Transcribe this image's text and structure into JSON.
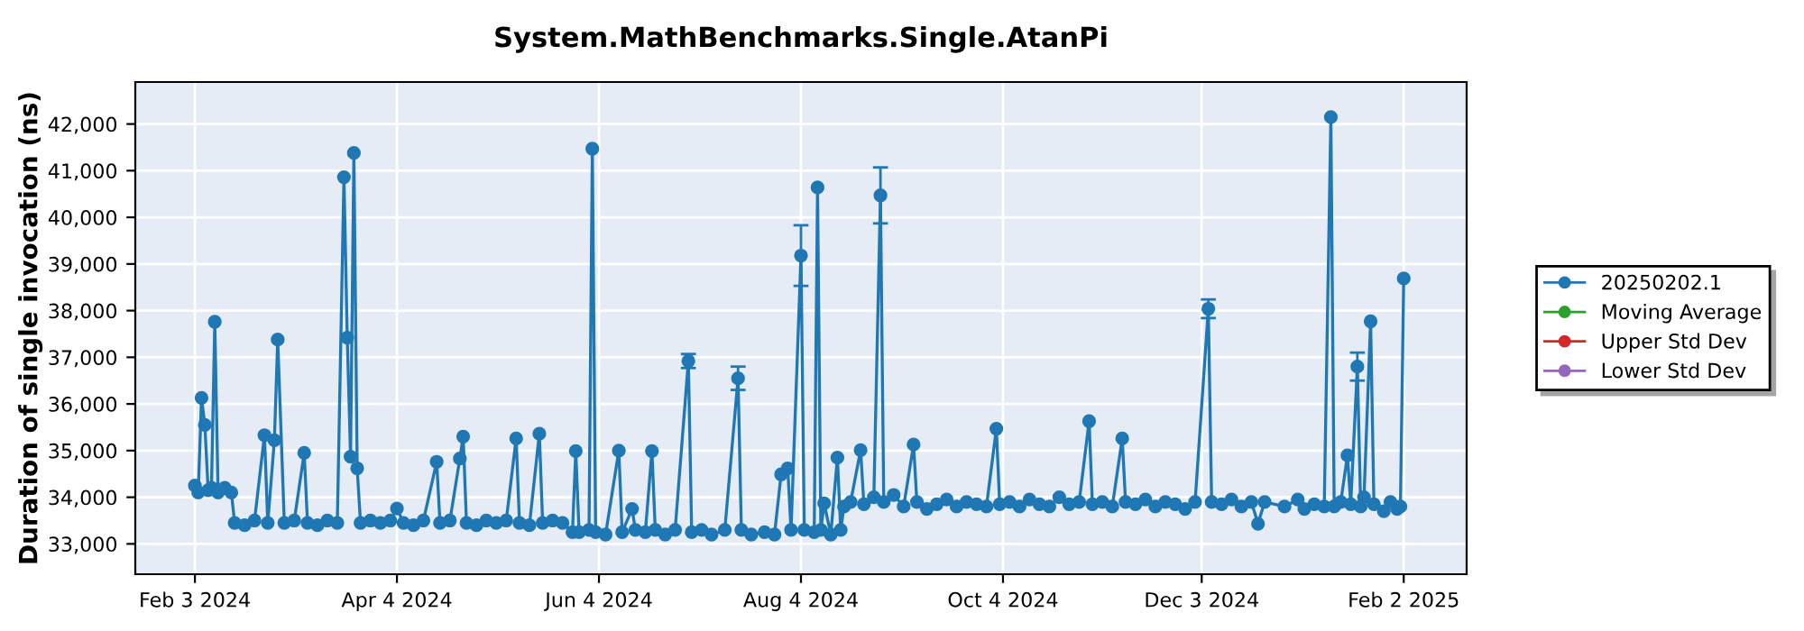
{
  "chart_data": {
    "type": "line",
    "title": "System.MathBenchmarks.Single.AtanPi",
    "ylabel": "Duration of single invocation (ns)",
    "x": [
      "2024-02-03",
      "2024-02-04",
      "2024-02-05",
      "2024-02-06",
      "2024-02-07",
      "2024-02-08",
      "2024-02-09",
      "2024-02-10",
      "2024-02-12",
      "2024-02-14",
      "2024-02-15",
      "2024-02-18",
      "2024-02-21",
      "2024-02-24",
      "2024-02-25",
      "2024-02-27",
      "2024-02-28",
      "2024-03-01",
      "2024-03-04",
      "2024-03-07",
      "2024-03-08",
      "2024-03-11",
      "2024-03-14",
      "2024-03-17",
      "2024-03-19",
      "2024-03-20",
      "2024-03-21",
      "2024-03-22",
      "2024-03-23",
      "2024-03-24",
      "2024-03-27",
      "2024-03-30",
      "2024-04-02",
      "2024-04-04",
      "2024-04-06",
      "2024-04-09",
      "2024-04-12",
      "2024-04-16",
      "2024-04-17",
      "2024-04-20",
      "2024-04-23",
      "2024-04-24",
      "2024-04-25",
      "2024-04-28",
      "2024-05-01",
      "2024-05-04",
      "2024-05-07",
      "2024-05-10",
      "2024-05-11",
      "2024-05-14",
      "2024-05-17",
      "2024-05-18",
      "2024-05-21",
      "2024-05-24",
      "2024-05-27",
      "2024-05-28",
      "2024-05-29",
      "2024-06-01",
      "2024-06-02",
      "2024-06-03",
      "2024-06-06",
      "2024-06-10",
      "2024-06-11",
      "2024-06-14",
      "2024-06-15",
      "2024-06-18",
      "2024-06-20",
      "2024-06-21",
      "2024-06-24",
      "2024-06-27",
      "2024-07-01",
      "2024-07-02",
      "2024-07-05",
      "2024-07-08",
      "2024-07-12",
      "2024-07-16",
      "2024-07-17",
      "2024-07-20",
      "2024-07-24",
      "2024-07-27",
      "2024-07-29",
      "2024-07-31",
      "2024-08-01",
      "2024-08-04",
      "2024-08-05",
      "2024-08-08",
      "2024-08-09",
      "2024-08-10",
      "2024-08-11",
      "2024-08-13",
      "2024-08-15",
      "2024-08-16",
      "2024-08-17",
      "2024-08-19",
      "2024-08-22",
      "2024-08-23",
      "2024-08-26",
      "2024-08-28",
      "2024-08-29",
      "2024-09-01",
      "2024-09-04",
      "2024-09-07",
      "2024-09-08",
      "2024-09-11",
      "2024-09-14",
      "2024-09-17",
      "2024-09-20",
      "2024-09-23",
      "2024-09-26",
      "2024-09-29",
      "2024-10-02",
      "2024-10-03",
      "2024-10-06",
      "2024-10-09",
      "2024-10-12",
      "2024-10-15",
      "2024-10-18",
      "2024-10-21",
      "2024-10-24",
      "2024-10-27",
      "2024-10-30",
      "2024-10-31",
      "2024-11-03",
      "2024-11-06",
      "2024-11-09",
      "2024-11-10",
      "2024-11-13",
      "2024-11-16",
      "2024-11-19",
      "2024-11-22",
      "2024-11-25",
      "2024-11-28",
      "2024-12-01",
      "2024-12-05",
      "2024-12-06",
      "2024-12-09",
      "2024-12-12",
      "2024-12-15",
      "2024-12-18",
      "2024-12-20",
      "2024-12-22",
      "2024-12-28",
      "2025-01-01",
      "2025-01-03",
      "2025-01-06",
      "2025-01-09",
      "2025-01-11",
      "2025-01-12",
      "2025-01-14",
      "2025-01-16",
      "2025-01-17",
      "2025-01-19",
      "2025-01-20",
      "2025-01-21",
      "2025-01-23",
      "2025-01-24",
      "2025-01-27",
      "2025-01-29",
      "2025-01-31",
      "2025-02-01",
      "2025-02-02"
    ],
    "series": [
      {
        "name": "20250202.1",
        "color": "#1f77b4",
        "values": [
          34250,
          34100,
          36130,
          35550,
          34150,
          34200,
          37760,
          34100,
          34200,
          34100,
          33450,
          33400,
          33500,
          35330,
          33450,
          35220,
          37380,
          33450,
          33500,
          34950,
          33450,
          33400,
          33500,
          33450,
          40860,
          37420,
          34870,
          41380,
          34620,
          33450,
          33500,
          33450,
          33500,
          33760,
          33450,
          33400,
          33500,
          34760,
          33450,
          33500,
          34830,
          35300,
          33450,
          33400,
          33500,
          33450,
          33500,
          35260,
          33450,
          33400,
          35360,
          33450,
          33500,
          33450,
          33250,
          34990,
          33250,
          33300,
          41470,
          33250,
          33200,
          35000,
          33250,
          33750,
          33300,
          33250,
          34990,
          33300,
          33200,
          33300,
          36920,
          33250,
          33300,
          33200,
          33300,
          36550,
          33300,
          33200,
          33250,
          33200,
          34490,
          34620,
          33300,
          39180,
          33300,
          33250,
          40640,
          33300,
          33870,
          33200,
          34850,
          33300,
          33800,
          33900,
          35010,
          33850,
          34000,
          40470,
          33900,
          34050,
          33800,
          35130,
          33900,
          33750,
          33850,
          33950,
          33800,
          33900,
          33850,
          33800,
          35470,
          33850,
          33900,
          33800,
          33950,
          33850,
          33800,
          34000,
          33850,
          33900,
          35630,
          33850,
          33900,
          33800,
          35260,
          33900,
          33850,
          33950,
          33800,
          33900,
          33850,
          33750,
          33900,
          38040,
          33900,
          33850,
          33950,
          33800,
          33900,
          33430,
          33900,
          33800,
          33950,
          33750,
          33850,
          33800,
          42150,
          33800,
          33900,
          34900,
          33850,
          36800,
          33800,
          34000,
          37770,
          33850,
          33700,
          33900,
          33750,
          33800,
          38690
        ],
        "errors": [
          null,
          null,
          null,
          null,
          null,
          null,
          null,
          null,
          null,
          null,
          null,
          null,
          null,
          null,
          null,
          null,
          null,
          null,
          null,
          null,
          null,
          null,
          null,
          null,
          null,
          null,
          null,
          null,
          null,
          null,
          null,
          null,
          null,
          null,
          null,
          null,
          null,
          null,
          null,
          null,
          null,
          null,
          null,
          null,
          null,
          null,
          null,
          null,
          null,
          null,
          null,
          null,
          null,
          null,
          null,
          null,
          null,
          null,
          null,
          null,
          null,
          null,
          null,
          null,
          null,
          null,
          null,
          null,
          null,
          null,
          150,
          null,
          null,
          null,
          null,
          250,
          null,
          null,
          null,
          null,
          null,
          null,
          null,
          650,
          null,
          null,
          null,
          null,
          null,
          null,
          null,
          null,
          null,
          null,
          null,
          null,
          null,
          600,
          null,
          null,
          null,
          null,
          null,
          null,
          null,
          null,
          null,
          null,
          null,
          null,
          null,
          null,
          null,
          null,
          null,
          null,
          null,
          null,
          null,
          null,
          null,
          null,
          null,
          null,
          null,
          null,
          null,
          null,
          null,
          null,
          null,
          null,
          null,
          200,
          null,
          null,
          null,
          null,
          null,
          null,
          null,
          null,
          null,
          null,
          null,
          null,
          null,
          null,
          null,
          null,
          null,
          300,
          null,
          null,
          null,
          null,
          null,
          null,
          null,
          null,
          null
        ]
      },
      {
        "name": "Moving Average",
        "color": "#2ca02c",
        "values": [
          null,
          null,
          null,
          null,
          null,
          null,
          null,
          null,
          null,
          null,
          null,
          null,
          null,
          null,
          null,
          null,
          null,
          null,
          null,
          null,
          null,
          null,
          null,
          null,
          null,
          null,
          null,
          null,
          null,
          null,
          null,
          null,
          null,
          null,
          null,
          null,
          null,
          null,
          null,
          null,
          null,
          null,
          null,
          null,
          null,
          null,
          null,
          null,
          null,
          null,
          null,
          null,
          null,
          null,
          null,
          null,
          null,
          null,
          null,
          null,
          null,
          null,
          null,
          null,
          null,
          null,
          null,
          null,
          null,
          null,
          null,
          null,
          null,
          null,
          null,
          null,
          null,
          null,
          null,
          null,
          null,
          null,
          null,
          null,
          null,
          null,
          null,
          null,
          null,
          null,
          null,
          null,
          null,
          null,
          null,
          null,
          null,
          null,
          null,
          null,
          null,
          null,
          null,
          null,
          null,
          null,
          null,
          null,
          null,
          null,
          null,
          null,
          null,
          null,
          null,
          null,
          null,
          null,
          null,
          null,
          null,
          null,
          null,
          null,
          null,
          null,
          null,
          null,
          null,
          null,
          null,
          null,
          null,
          null,
          null,
          null,
          null,
          null,
          null,
          null,
          null,
          null,
          null,
          null,
          null,
          null,
          null,
          null,
          null,
          null,
          null,
          null,
          null,
          null,
          null,
          null,
          null,
          null,
          null,
          null,
          null
        ]
      },
      {
        "name": "Upper Std Dev",
        "color": "#d62728",
        "values": [
          null,
          null,
          null,
          null,
          null,
          null,
          null,
          null,
          null,
          null,
          null,
          null,
          null,
          null,
          null,
          null,
          null,
          null,
          null,
          null,
          null,
          null,
          null,
          null,
          null,
          null,
          null,
          null,
          null,
          null,
          null,
          null,
          null,
          null,
          null,
          null,
          null,
          null,
          null,
          null,
          null,
          null,
          null,
          null,
          null,
          null,
          null,
          null,
          null,
          null,
          null,
          null,
          null,
          null,
          null,
          null,
          null,
          null,
          null,
          null,
          null,
          null,
          null,
          null,
          null,
          null,
          null,
          null,
          null,
          null,
          null,
          null,
          null,
          null,
          null,
          null,
          null,
          null,
          null,
          null,
          null,
          null,
          null,
          null,
          null,
          null,
          null,
          null,
          null,
          null,
          null,
          null,
          null,
          null,
          null,
          null,
          null,
          null,
          null,
          null,
          null,
          null,
          null,
          null,
          null,
          null,
          null,
          null,
          null,
          null,
          null,
          null,
          null,
          null,
          null,
          null,
          null,
          null,
          null,
          null,
          null,
          null,
          null,
          null,
          null,
          null,
          null,
          null,
          null,
          null,
          null,
          null,
          null,
          null,
          null,
          null,
          null,
          null,
          null,
          null,
          null,
          null,
          null,
          null,
          null,
          null,
          null,
          null,
          null,
          null,
          null,
          null,
          null,
          null,
          null,
          null,
          null,
          null,
          null,
          null,
          null
        ]
      },
      {
        "name": "Lower Std Dev",
        "color": "#9467bd",
        "values": [
          null,
          null,
          null,
          null,
          null,
          null,
          null,
          null,
          null,
          null,
          null,
          null,
          null,
          null,
          null,
          null,
          null,
          null,
          null,
          null,
          null,
          null,
          null,
          null,
          null,
          null,
          null,
          null,
          null,
          null,
          null,
          null,
          null,
          null,
          null,
          null,
          null,
          null,
          null,
          null,
          null,
          null,
          null,
          null,
          null,
          null,
          null,
          null,
          null,
          null,
          null,
          null,
          null,
          null,
          null,
          null,
          null,
          null,
          null,
          null,
          null,
          null,
          null,
          null,
          null,
          null,
          null,
          null,
          null,
          null,
          null,
          null,
          null,
          null,
          null,
          null,
          null,
          null,
          null,
          null,
          null,
          null,
          null,
          null,
          null,
          null,
          null,
          null,
          null,
          null,
          null,
          null,
          null,
          null,
          null,
          null,
          null,
          null,
          null,
          null,
          null,
          null,
          null,
          null,
          null,
          null,
          null,
          null,
          null,
          null,
          null,
          null,
          null,
          null,
          null,
          null,
          null,
          null,
          null,
          null,
          null,
          null,
          null,
          null,
          null,
          null,
          null,
          null,
          null,
          null,
          null,
          null,
          null,
          null,
          null,
          null,
          null,
          null,
          null,
          null,
          null,
          null,
          null,
          null,
          null,
          null,
          null,
          null,
          null,
          null,
          null,
          null,
          null,
          null,
          null,
          null,
          null,
          null,
          null,
          null,
          null
        ]
      }
    ],
    "xlim": [
      "2024-01-16",
      "2025-02-21"
    ],
    "xticks": [
      {
        "value": "2024-02-03",
        "label": "Feb 3 2024"
      },
      {
        "value": "2024-04-04",
        "label": "Apr 4 2024"
      },
      {
        "value": "2024-06-04",
        "label": "Jun 4 2024"
      },
      {
        "value": "2024-08-04",
        "label": "Aug 4 2024"
      },
      {
        "value": "2024-10-04",
        "label": "Oct 4 2024"
      },
      {
        "value": "2024-12-03",
        "label": "Dec 3 2024"
      },
      {
        "value": "2025-02-02",
        "label": "Feb 2 2025"
      }
    ],
    "ylim": [
      32350,
      42900
    ],
    "yticks": [
      {
        "value": 33000,
        "label": "33,000"
      },
      {
        "value": 34000,
        "label": "34,000"
      },
      {
        "value": 35000,
        "label": "35,000"
      },
      {
        "value": 36000,
        "label": "36,000"
      },
      {
        "value": 37000,
        "label": "37,000"
      },
      {
        "value": 38000,
        "label": "38,000"
      },
      {
        "value": 39000,
        "label": "39,000"
      },
      {
        "value": 40000,
        "label": "40,000"
      },
      {
        "value": 41000,
        "label": "41,000"
      },
      {
        "value": 42000,
        "label": "42,000"
      }
    ],
    "grid": true,
    "legend": "right",
    "marker": "circle",
    "line_style": "solid"
  }
}
